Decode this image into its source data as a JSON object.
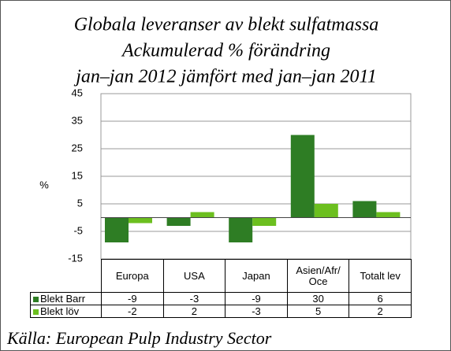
{
  "chart_data": {
    "type": "bar",
    "title": [
      "Globala leveranser av blekt sulfatmassa",
      "Ackumulerad % förändring",
      "jan–jan 2012 jämfört med jan–jan 2011"
    ],
    "ylabel": "%",
    "categories": [
      "Europa",
      "USA",
      "Japan",
      "Asien/Afr/ Oce",
      "Totalt lev"
    ],
    "series": [
      {
        "name": "Blekt Barr",
        "color": "#2e7d24",
        "values": [
          -9,
          -3,
          -9,
          30,
          6
        ]
      },
      {
        "name": "Blekt löv",
        "color": "#6cbf1f",
        "values": [
          -2,
          2,
          -3,
          5,
          2
        ]
      }
    ],
    "ylim": [
      -15,
      45
    ],
    "yticks": [
      -15,
      -5,
      5,
      15,
      25,
      35,
      45
    ],
    "grid": true,
    "source": "Källa: European Pulp Industry Sector"
  }
}
